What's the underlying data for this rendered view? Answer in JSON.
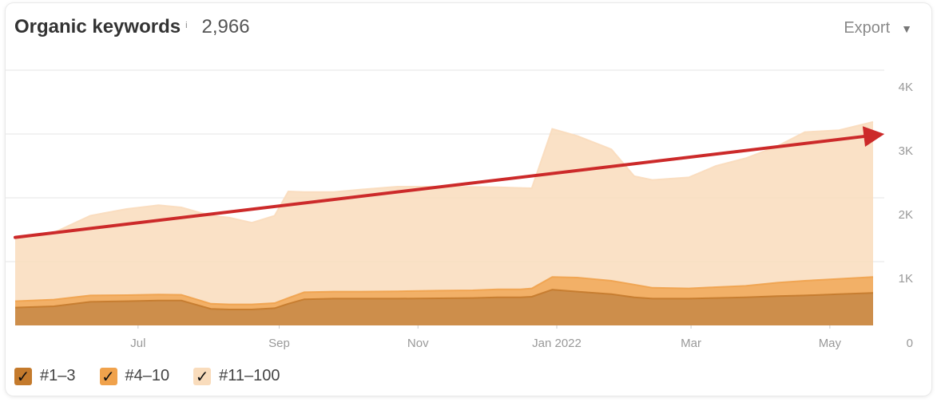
{
  "header": {
    "title": "Organic keywords",
    "info_icon": "i",
    "count": "2,966",
    "export_label": "Export",
    "export_caret": "▼"
  },
  "legend": [
    {
      "label": "#1–3",
      "color": "#c47a2c"
    },
    {
      "label": "#4–10",
      "color": "#f0a24c"
    },
    {
      "label": "#11–100",
      "color": "#f9dcbc"
    }
  ],
  "chart_data": {
    "type": "area",
    "stacked": true,
    "x_ticks": [
      "Jul",
      "Sep",
      "Nov",
      "Jan 2022",
      "Mar",
      "May"
    ],
    "y_ticks": [
      "0",
      "1K",
      "2K",
      "3K",
      "4K"
    ],
    "ylim": [
      0,
      4000
    ],
    "grid": true,
    "legend_position": "bottom-left",
    "x": [
      "2021-05-08",
      "2021-05-25",
      "2021-06-10",
      "2021-06-26",
      "2021-07-10",
      "2021-07-20",
      "2021-08-02",
      "2021-08-10",
      "2021-08-20",
      "2021-08-30",
      "2021-09-05",
      "2021-09-12",
      "2021-09-25",
      "2021-10-07",
      "2021-10-23",
      "2021-11-10",
      "2021-11-25",
      "2021-12-06",
      "2021-12-16",
      "2021-12-21",
      "2021-12-30",
      "2022-01-10",
      "2022-01-25",
      "2022-02-04",
      "2022-02-12",
      "2022-02-28",
      "2022-03-12",
      "2022-03-25",
      "2022-04-08",
      "2022-04-20",
      "2022-05-05",
      "2022-05-20"
    ],
    "series": [
      {
        "name": "#1–3",
        "color": "#c47a2c",
        "values": [
          280,
          300,
          370,
          380,
          390,
          390,
          260,
          250,
          250,
          270,
          340,
          410,
          420,
          420,
          420,
          425,
          430,
          440,
          440,
          450,
          560,
          530,
          490,
          440,
          420,
          420,
          430,
          440,
          460,
          470,
          490,
          510
        ]
      },
      {
        "name": "#4–10",
        "color": "#f0a24c",
        "values": [
          100,
          105,
          100,
          95,
          95,
          90,
          80,
          80,
          80,
          80,
          90,
          110,
          110,
          110,
          115,
          120,
          120,
          125,
          125,
          130,
          200,
          220,
          210,
          200,
          170,
          160,
          170,
          180,
          210,
          230,
          240,
          250
        ]
      },
      {
        "name": "#11–100",
        "color": "#f9dcbc",
        "values": [
          1000,
          1050,
          1250,
          1350,
          1400,
          1370,
          1380,
          1360,
          1280,
          1370,
          1670,
          1570,
          1560,
          1600,
          1640,
          1630,
          1620,
          1600,
          1590,
          1570,
          2320,
          2220,
          2060,
          1700,
          1690,
          1740,
          1900,
          2000,
          2140,
          2330,
          2330,
          2430
        ]
      }
    ],
    "annotation": {
      "type": "trend-arrow",
      "color": "#cc2a2a",
      "from": [
        "2021-05-08",
        1380
      ],
      "to": [
        "2022-05-25",
        3000
      ]
    }
  }
}
